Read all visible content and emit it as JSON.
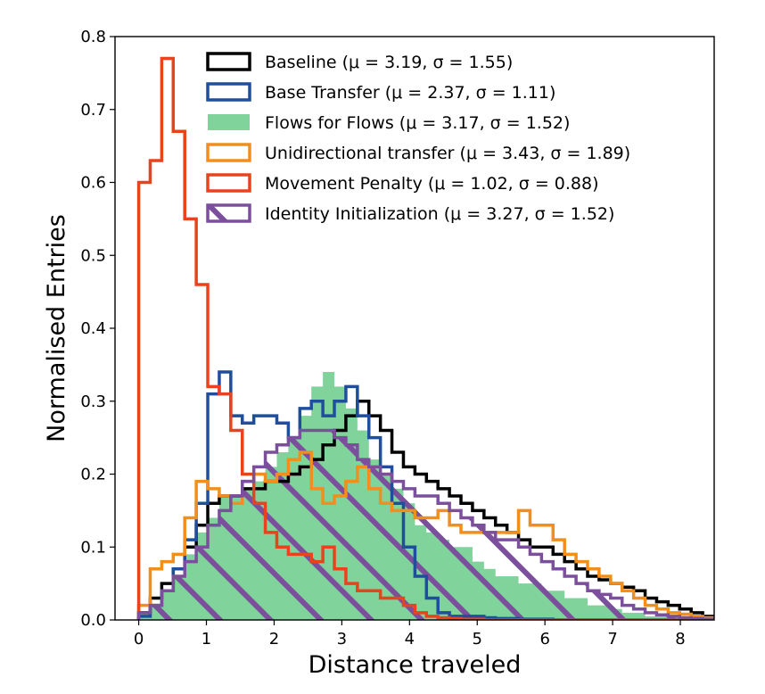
{
  "chart_data": {
    "type": "histogram",
    "xlabel": "Distance traveled",
    "ylabel": "Normalised Entries",
    "xlim": [
      -0.35,
      8.5
    ],
    "ylim": [
      0,
      0.8
    ],
    "x_ticks": [
      0,
      1,
      2,
      3,
      4,
      5,
      6,
      7,
      8
    ],
    "y_ticks": [
      0.0,
      0.1,
      0.2,
      0.3,
      0.4,
      0.5,
      0.6,
      0.7,
      0.8
    ],
    "x_tick_labels": [
      "0",
      "1",
      "2",
      "3",
      "4",
      "5",
      "6",
      "7",
      "8"
    ],
    "y_tick_labels": [
      "0.0",
      "0.1",
      "0.2",
      "0.3",
      "0.4",
      "0.5",
      "0.6",
      "0.7",
      "0.8"
    ],
    "bin_width": 0.17,
    "bin_start": 0,
    "legend_position": "top-right",
    "series": [
      {
        "name": "Baseline (μ = 3.19, σ = 1.55)",
        "style": "step",
        "color": "#000000",
        "values": [
          0.01,
          0.03,
          0.05,
          0.07,
          0.1,
          0.13,
          0.16,
          0.17,
          0.17,
          0.18,
          0.18,
          0.19,
          0.19,
          0.2,
          0.21,
          0.22,
          0.24,
          0.26,
          0.28,
          0.3,
          0.28,
          0.26,
          0.23,
          0.21,
          0.2,
          0.19,
          0.18,
          0.17,
          0.16,
          0.15,
          0.14,
          0.13,
          0.12,
          0.11,
          0.1,
          0.1,
          0.09,
          0.08,
          0.07,
          0.06,
          0.055,
          0.05,
          0.045,
          0.04,
          0.03,
          0.025,
          0.02,
          0.015,
          0.01,
          0.005
        ]
      },
      {
        "name": "Base Transfer (μ = 2.37, σ = 1.11)",
        "style": "step",
        "color": "#1f4e9c",
        "values": [
          0.005,
          0.02,
          0.04,
          0.07,
          0.11,
          0.16,
          0.31,
          0.34,
          0.28,
          0.27,
          0.28,
          0.28,
          0.27,
          0.25,
          0.29,
          0.3,
          0.28,
          0.3,
          0.32,
          0.28,
          0.25,
          0.21,
          0.16,
          0.1,
          0.06,
          0.03,
          0.01,
          0.005,
          0.005,
          0.005,
          0.003,
          0.002,
          0.002,
          0.001,
          0.001,
          0.001,
          0.0,
          0.0,
          0.0,
          0.0,
          0.0,
          0.0,
          0.0,
          0.0,
          0.0,
          0.0,
          0.0,
          0.0,
          0.0,
          0.0
        ]
      },
      {
        "name": "Flows for Flows (μ = 3.17, σ = 1.52)",
        "style": "filled",
        "color": "#7fd39b",
        "values": [
          0.01,
          0.02,
          0.04,
          0.06,
          0.09,
          0.12,
          0.14,
          0.17,
          0.17,
          0.18,
          0.19,
          0.21,
          0.23,
          0.25,
          0.28,
          0.32,
          0.34,
          0.32,
          0.29,
          0.26,
          0.22,
          0.2,
          0.18,
          0.16,
          0.13,
          0.12,
          0.11,
          0.1,
          0.1,
          0.08,
          0.07,
          0.06,
          0.06,
          0.05,
          0.05,
          0.04,
          0.04,
          0.03,
          0.03,
          0.02,
          0.02,
          0.015,
          0.01,
          0.01,
          0.005,
          0.005,
          0.003,
          0.002,
          0.001,
          0.001
        ]
      },
      {
        "name": "Unidirectional transfer (μ = 3.43, σ = 1.89)",
        "style": "step",
        "color": "#f28e1c",
        "values": [
          0.02,
          0.07,
          0.08,
          0.09,
          0.14,
          0.19,
          0.18,
          0.17,
          0.16,
          0.19,
          0.2,
          0.19,
          0.2,
          0.22,
          0.23,
          0.18,
          0.16,
          0.17,
          0.19,
          0.21,
          0.18,
          0.16,
          0.15,
          0.15,
          0.14,
          0.14,
          0.15,
          0.13,
          0.12,
          0.12,
          0.12,
          0.12,
          0.12,
          0.15,
          0.13,
          0.13,
          0.11,
          0.09,
          0.08,
          0.07,
          0.06,
          0.05,
          0.04,
          0.03,
          0.02,
          0.015,
          0.01,
          0.008,
          0.005,
          0.003
        ]
      },
      {
        "name": "Movement Penalty (μ = 1.02, σ = 0.88)",
        "style": "step",
        "color": "#e8431c",
        "values": [
          0.6,
          0.63,
          0.77,
          0.67,
          0.55,
          0.46,
          0.32,
          0.31,
          0.26,
          0.2,
          0.16,
          0.12,
          0.1,
          0.09,
          0.09,
          0.08,
          0.1,
          0.07,
          0.05,
          0.04,
          0.04,
          0.03,
          0.03,
          0.02,
          0.01,
          0.005,
          0.003,
          0.002,
          0.001,
          0.001,
          0.0,
          0.0,
          0.0,
          0.0,
          0.0,
          0.0,
          0.0,
          0.0,
          0.0,
          0.0,
          0.0,
          0.0,
          0.0,
          0.0,
          0.0,
          0.0,
          0.0,
          0.0,
          0.0,
          0.0
        ]
      },
      {
        "name": "Identity Initialization (μ = 3.27, σ = 1.52)",
        "style": "hatched-step",
        "color": "#7b4f9c",
        "values": [
          0.01,
          0.02,
          0.04,
          0.06,
          0.08,
          0.1,
          0.13,
          0.15,
          0.17,
          0.19,
          0.21,
          0.23,
          0.24,
          0.25,
          0.26,
          0.26,
          0.26,
          0.25,
          0.24,
          0.22,
          0.21,
          0.2,
          0.19,
          0.18,
          0.17,
          0.17,
          0.16,
          0.15,
          0.14,
          0.13,
          0.12,
          0.11,
          0.11,
          0.1,
          0.09,
          0.08,
          0.07,
          0.06,
          0.05,
          0.04,
          0.035,
          0.03,
          0.02,
          0.015,
          0.01,
          0.007,
          0.005,
          0.003,
          0.002,
          0.001
        ]
      }
    ]
  }
}
